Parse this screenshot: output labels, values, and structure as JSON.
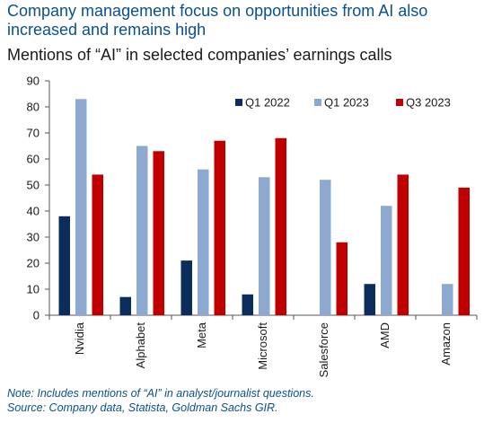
{
  "headline": "Company management focus on opportunities from AI also increased and remains high",
  "subtitle": "Mentions of “AI” in selected companies’ earnings calls",
  "note_line1": "Note: Includes mentions of “AI” in analyst/journalist questions.",
  "note_line2": "Source: Company data, Statista, Goldman Sachs GIR.",
  "chart_data": {
    "type": "bar",
    "categories": [
      "Nvidia",
      "Alphabet",
      "Meta",
      "Microsoft",
      "Salesforce",
      "AMD",
      "Amazon"
    ],
    "series": [
      {
        "name": "Q1 2022",
        "color": "#0b2d5b",
        "values": [
          38,
          7,
          21,
          8,
          0,
          12,
          0
        ]
      },
      {
        "name": "Q1 2023",
        "color": "#8ea9d0",
        "values": [
          83,
          65,
          56,
          53,
          52,
          42,
          12
        ]
      },
      {
        "name": "Q3 2023",
        "color": "#c00000",
        "values": [
          54,
          63,
          67,
          68,
          28,
          54,
          49
        ]
      }
    ],
    "ylim": [
      0,
      90
    ],
    "yticks": [
      0,
      10,
      20,
      30,
      40,
      50,
      60,
      70,
      80,
      90
    ],
    "legend_position": "top-right",
    "grid": false
  }
}
